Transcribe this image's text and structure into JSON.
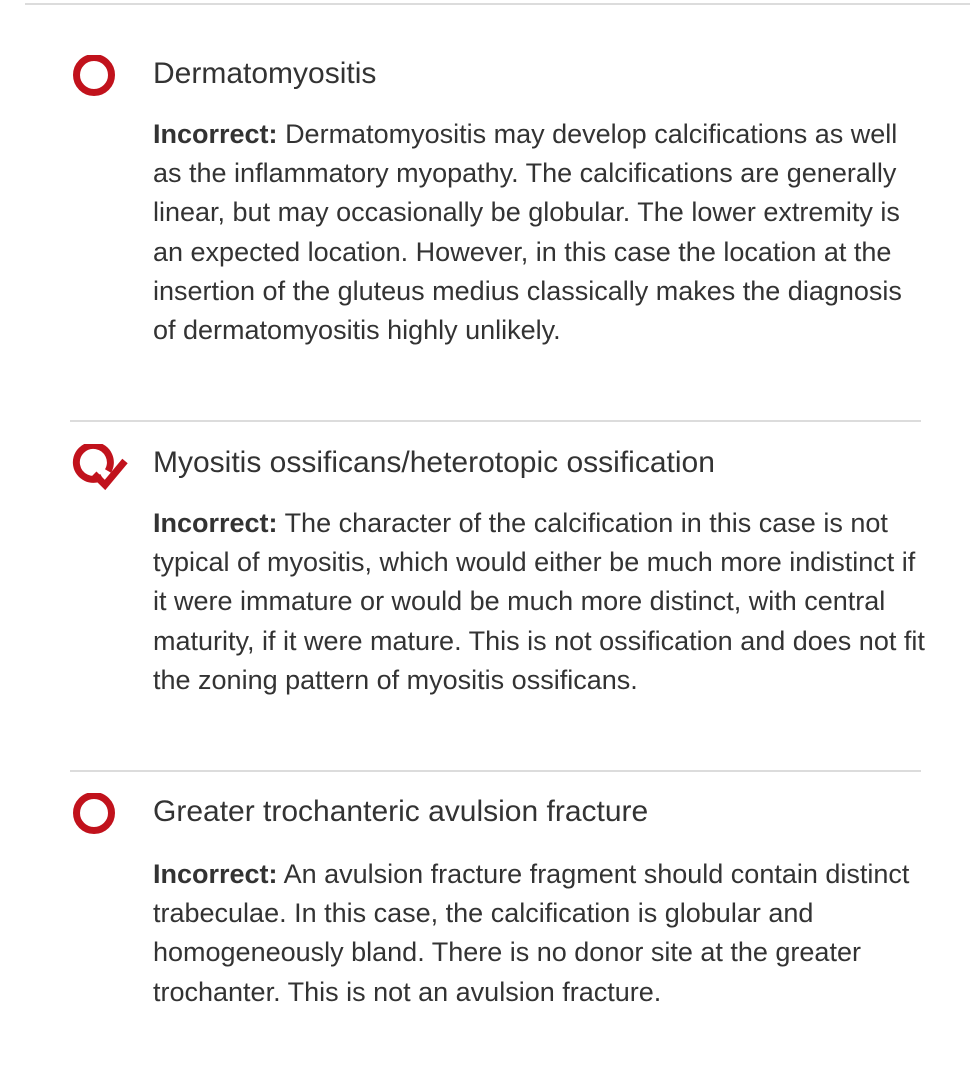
{
  "options": [
    {
      "icon": "radio-unselected-icon",
      "title": "Dermatomyositis",
      "result_label": "Incorrect:",
      "feedback": "Dermatomyositis may develop calcifications as well as the inflammatory myopathy. The calcifications are generally linear, but may occasionally be globular. The lower extremity is an expected location. However, in this case the location at the insertion of the gluteus medius classically makes the diagnosis of dermatomyositis highly unlikely."
    },
    {
      "icon": "radio-selected-check-icon",
      "title": "Myositis ossificans/heterotopic ossification",
      "result_label": "Incorrect:",
      "feedback": "The character of the calcification in this case is not typical of myositis, which would either be much more indistinct if it were immature or would be much more distinct, with central maturity, if it were mature. This is not ossification and does not fit the zoning pattern of myositis ossificans."
    },
    {
      "icon": "radio-unselected-icon",
      "title": "Greater trochanteric avulsion fracture",
      "result_label": "Incorrect:",
      "feedback": "An avulsion fracture fragment should contain distinct trabeculae. In this case, the calcification is globular and homogeneously bland. There is no donor site at the greater trochanter. This is not an avulsion fracture."
    }
  ],
  "colors": {
    "accent": "#c1121c",
    "text": "#333333",
    "divider": "#dcdcdc"
  }
}
